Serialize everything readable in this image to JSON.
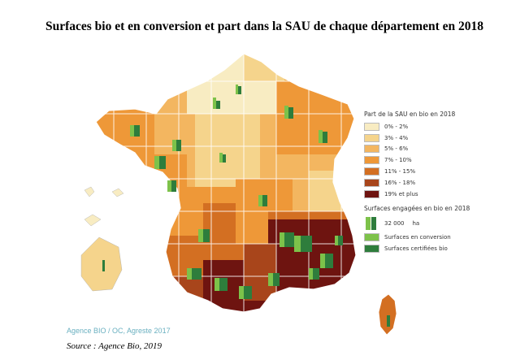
{
  "title": "Surfaces bio et en conversion et part dans la SAU de chaque département en 2018",
  "legend": {
    "title": "Part de la SAU en bio en 2018",
    "classes": [
      {
        "label": "0% - 2%",
        "color": "#f8ecc2"
      },
      {
        "label": "3% - 4%",
        "color": "#f5d48c"
      },
      {
        "label": "5% - 6%",
        "color": "#f3b660"
      },
      {
        "label": "7% - 10%",
        "color": "#ee9838"
      },
      {
        "label": "11% - 15%",
        "color": "#d36f22"
      },
      {
        "label": "16% - 18%",
        "color": "#a8451b"
      },
      {
        "label": "19% et plus",
        "color": "#6e1410"
      }
    ],
    "surfaces_title": "Surfaces engagées en bio en 2018",
    "size_value": "32 000",
    "size_unit": "ha",
    "conversion_label": "Surfaces en conversion",
    "certified_label": "Surfaces certifiées bio",
    "conversion_color": "#7dc24a",
    "certified_color": "#2e7d3c"
  },
  "credit": "Agence BIO / OC, Agreste 2017",
  "source": "Source : Agence Bio, 2019"
}
